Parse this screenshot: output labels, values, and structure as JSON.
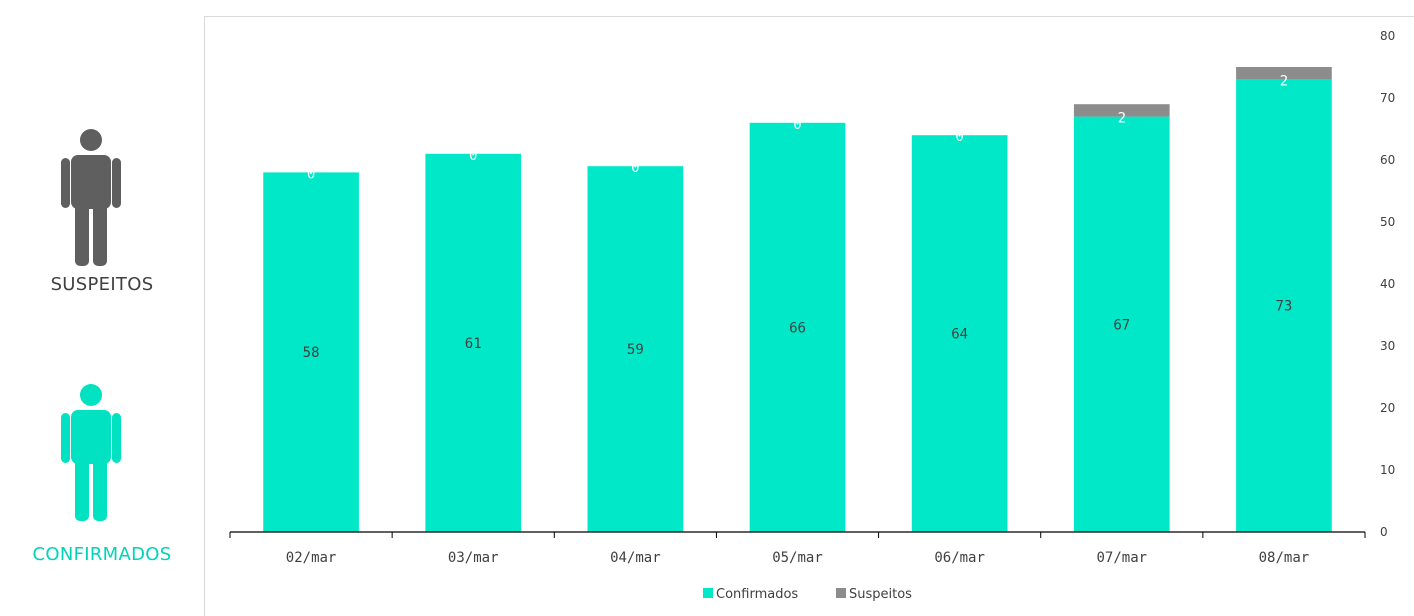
{
  "side_panel": {
    "suspeitos": {
      "label": "SUSPEITOS",
      "color": "#5f5f5f",
      "icon": "person-icon"
    },
    "confirmados": {
      "label": "CONFIRMADOS",
      "color": "#00e2c1",
      "icon": "person-icon"
    }
  },
  "colors": {
    "confirmados": "#00e8c8",
    "suspeitos": "#8c8c8c",
    "axis": "#000000",
    "text": "#404040"
  },
  "chart_data": {
    "type": "bar",
    "stacked": true,
    "categories": [
      "02/mar",
      "03/mar",
      "04/mar",
      "05/mar",
      "06/mar",
      "07/mar",
      "08/mar"
    ],
    "series": [
      {
        "name": "Confirmados",
        "values": [
          58,
          61,
          59,
          66,
          64,
          67,
          73
        ]
      },
      {
        "name": "Suspeitos",
        "values": [
          0,
          0,
          0,
          0,
          0,
          2,
          2
        ]
      }
    ],
    "ylim": [
      0,
      80
    ],
    "yticks": [
      0,
      10,
      20,
      30,
      40,
      50,
      60,
      70,
      80
    ],
    "y_axis_side": "right",
    "grid": false,
    "legend": "bottom"
  }
}
